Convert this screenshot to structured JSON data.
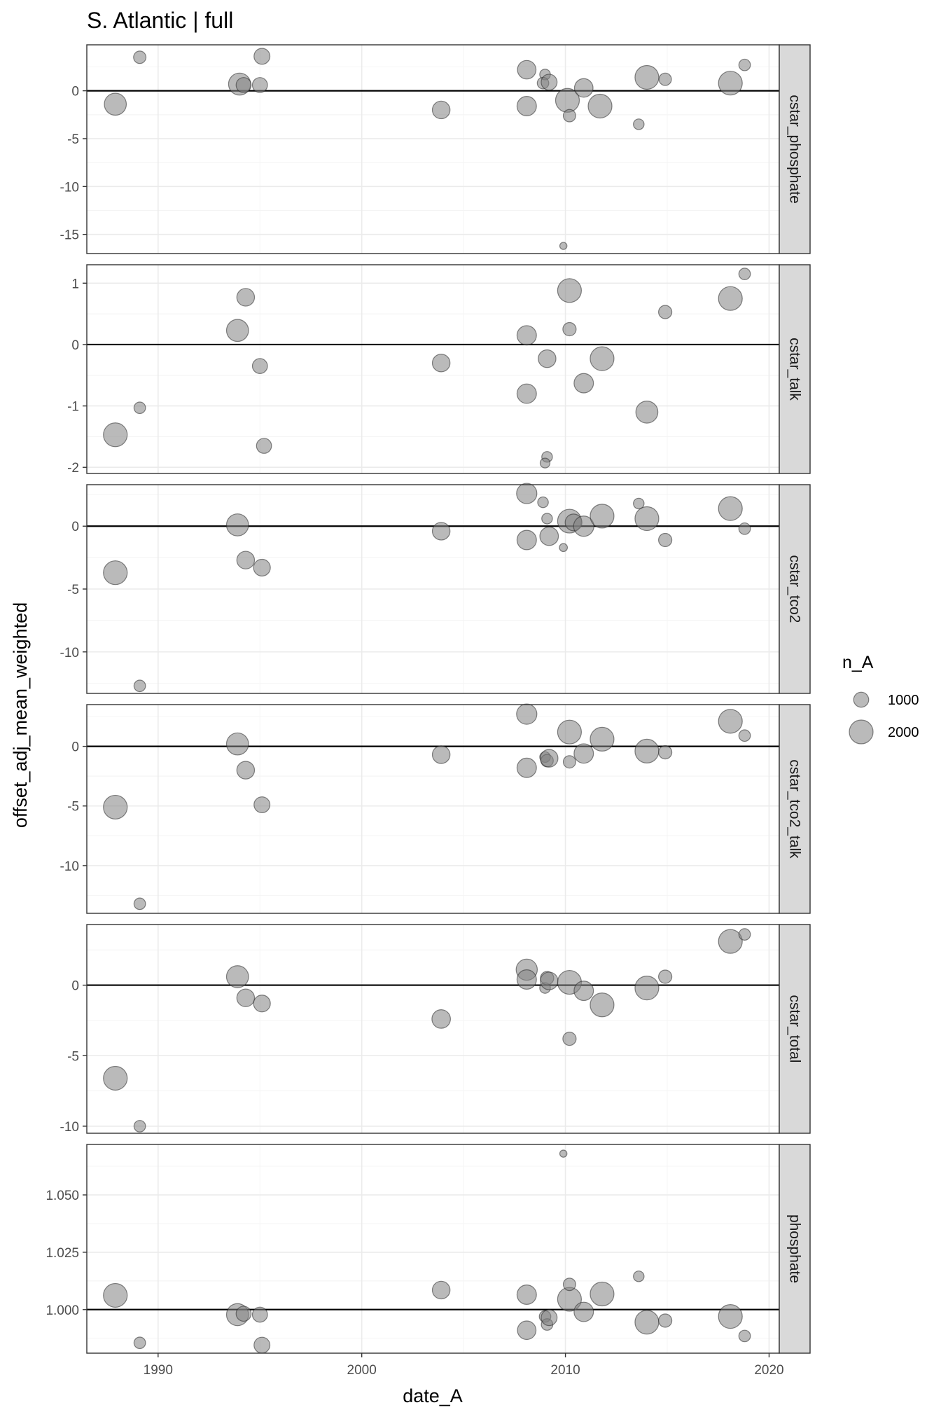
{
  "chart_data": {
    "type": "scatter",
    "title": "S. Atlantic | full",
    "xlabel": "date_A",
    "ylabel": "offset_adj_mean_weighted",
    "xlim": [
      1986.5,
      2020.5
    ],
    "x_ticks": [
      1990,
      2000,
      2010,
      2020
    ],
    "x_tick_labels": [
      "1990",
      "2000",
      "2010",
      "2020"
    ],
    "size_legend": {
      "title": "n_A",
      "entries": [
        {
          "label": "1000",
          "value": 1000
        },
        {
          "label": "2000",
          "value": 2000
        }
      ]
    },
    "reference_line_y": [
      0,
      0,
      0,
      0,
      0,
      1
    ],
    "panels": [
      {
        "label": "cstar_phosphate",
        "ylim": [
          -17,
          4.8
        ],
        "y_ticks": [
          0,
          -5,
          -10,
          -15
        ],
        "y_tick_labels": [
          "0",
          "-5",
          "-10",
          "-15"
        ],
        "points": [
          {
            "x": 1987.9,
            "y": -1.4,
            "n": 1800
          },
          {
            "x": 1989.1,
            "y": 3.5,
            "n": 700
          },
          {
            "x": 1994.0,
            "y": 0.7,
            "n": 1800
          },
          {
            "x": 1994.2,
            "y": 0.6,
            "n": 1000
          },
          {
            "x": 1995.1,
            "y": 3.6,
            "n": 1100
          },
          {
            "x": 1995.0,
            "y": 0.6,
            "n": 1000
          },
          {
            "x": 2003.9,
            "y": -2.0,
            "n": 1300
          },
          {
            "x": 2008.1,
            "y": 2.2,
            "n": 1400
          },
          {
            "x": 2008.1,
            "y": -1.6,
            "n": 1500
          },
          {
            "x": 2009.0,
            "y": 1.7,
            "n": 500
          },
          {
            "x": 2008.9,
            "y": 0.8,
            "n": 600
          },
          {
            "x": 2009.2,
            "y": 0.9,
            "n": 1100
          },
          {
            "x": 2010.1,
            "y": -1.0,
            "n": 2000
          },
          {
            "x": 2010.2,
            "y": -2.6,
            "n": 700
          },
          {
            "x": 2010.9,
            "y": 0.3,
            "n": 1400
          },
          {
            "x": 2011.7,
            "y": -1.6,
            "n": 2000
          },
          {
            "x": 2009.9,
            "y": -16.2,
            "n": 100
          },
          {
            "x": 2013.6,
            "y": -3.5,
            "n": 500
          },
          {
            "x": 2014.0,
            "y": 1.4,
            "n": 2000
          },
          {
            "x": 2014.9,
            "y": 1.2,
            "n": 700
          },
          {
            "x": 2018.1,
            "y": 0.8,
            "n": 2000
          },
          {
            "x": 2018.8,
            "y": 2.7,
            "n": 600
          }
        ]
      },
      {
        "label": "cstar_talk",
        "ylim": [
          -2.1,
          1.3
        ],
        "y_ticks": [
          1,
          0,
          -1,
          -2
        ],
        "y_tick_labels": [
          "1",
          "0",
          "-1",
          "-2"
        ],
        "points": [
          {
            "x": 1987.9,
            "y": -1.47,
            "n": 2000
          },
          {
            "x": 1989.1,
            "y": -1.03,
            "n": 600
          },
          {
            "x": 1993.9,
            "y": 0.23,
            "n": 1800
          },
          {
            "x": 1994.3,
            "y": 0.77,
            "n": 1300
          },
          {
            "x": 1995.0,
            "y": -0.35,
            "n": 1000
          },
          {
            "x": 1995.2,
            "y": -1.65,
            "n": 1000
          },
          {
            "x": 2003.9,
            "y": -0.3,
            "n": 1300
          },
          {
            "x": 2008.1,
            "y": 0.15,
            "n": 1500
          },
          {
            "x": 2008.1,
            "y": -0.8,
            "n": 1500
          },
          {
            "x": 2009.1,
            "y": -0.23,
            "n": 1300
          },
          {
            "x": 2009.1,
            "y": -1.83,
            "n": 500
          },
          {
            "x": 2009.0,
            "y": -1.93,
            "n": 400
          },
          {
            "x": 2010.2,
            "y": 0.88,
            "n": 2000
          },
          {
            "x": 2010.2,
            "y": 0.25,
            "n": 800
          },
          {
            "x": 2010.9,
            "y": -0.63,
            "n": 1500
          },
          {
            "x": 2011.8,
            "y": -0.23,
            "n": 2000
          },
          {
            "x": 2014.0,
            "y": -1.1,
            "n": 1800
          },
          {
            "x": 2014.9,
            "y": 0.53,
            "n": 800
          },
          {
            "x": 2018.1,
            "y": 0.75,
            "n": 2000
          },
          {
            "x": 2018.8,
            "y": 1.15,
            "n": 600
          }
        ]
      },
      {
        "label": "cstar_tco2",
        "ylim": [
          -13.3,
          3.3
        ],
        "y_ticks": [
          0,
          -5,
          -10
        ],
        "y_tick_labels": [
          "0",
          "-5",
          "-10"
        ],
        "points": [
          {
            "x": 1987.9,
            "y": -3.7,
            "n": 2000
          },
          {
            "x": 1989.1,
            "y": -12.7,
            "n": 600
          },
          {
            "x": 1993.9,
            "y": 0.1,
            "n": 1800
          },
          {
            "x": 1994.3,
            "y": -2.7,
            "n": 1300
          },
          {
            "x": 1995.1,
            "y": -3.3,
            "n": 1200
          },
          {
            "x": 2003.9,
            "y": -0.4,
            "n": 1300
          },
          {
            "x": 2008.1,
            "y": 2.6,
            "n": 1600
          },
          {
            "x": 2008.1,
            "y": -1.1,
            "n": 1500
          },
          {
            "x": 2008.9,
            "y": 1.9,
            "n": 500
          },
          {
            "x": 2009.1,
            "y": 0.6,
            "n": 500
          },
          {
            "x": 2009.2,
            "y": -0.8,
            "n": 1400
          },
          {
            "x": 2009.9,
            "y": -1.7,
            "n": 200
          },
          {
            "x": 2010.2,
            "y": 0.4,
            "n": 2000
          },
          {
            "x": 2010.4,
            "y": 0.3,
            "n": 1200
          },
          {
            "x": 2010.9,
            "y": 0.0,
            "n": 1600
          },
          {
            "x": 2011.8,
            "y": 0.8,
            "n": 2000
          },
          {
            "x": 2013.6,
            "y": 1.8,
            "n": 500
          },
          {
            "x": 2014.0,
            "y": 0.6,
            "n": 2000
          },
          {
            "x": 2014.9,
            "y": -1.1,
            "n": 800
          },
          {
            "x": 2018.1,
            "y": 1.4,
            "n": 2000
          },
          {
            "x": 2018.8,
            "y": -0.2,
            "n": 600
          }
        ]
      },
      {
        "label": "cstar_tco2_talk",
        "ylim": [
          -14.0,
          3.5
        ],
        "y_ticks": [
          0,
          -5,
          -10
        ],
        "y_tick_labels": [
          "0",
          "-5",
          "-10"
        ],
        "points": [
          {
            "x": 1987.9,
            "y": -5.1,
            "n": 2000
          },
          {
            "x": 1989.1,
            "y": -13.2,
            "n": 600
          },
          {
            "x": 1993.9,
            "y": 0.2,
            "n": 1800
          },
          {
            "x": 1994.3,
            "y": -2.0,
            "n": 1300
          },
          {
            "x": 1995.1,
            "y": -4.9,
            "n": 1100
          },
          {
            "x": 2003.9,
            "y": -0.7,
            "n": 1300
          },
          {
            "x": 2008.1,
            "y": 2.7,
            "n": 1600
          },
          {
            "x": 2008.1,
            "y": -1.8,
            "n": 1500
          },
          {
            "x": 2009.0,
            "y": -0.9,
            "n": 500
          },
          {
            "x": 2009.1,
            "y": -1.2,
            "n": 700
          },
          {
            "x": 2009.2,
            "y": -1.0,
            "n": 1300
          },
          {
            "x": 2010.2,
            "y": 1.2,
            "n": 2000
          },
          {
            "x": 2010.2,
            "y": -1.3,
            "n": 700
          },
          {
            "x": 2010.9,
            "y": -0.6,
            "n": 1500
          },
          {
            "x": 2011.8,
            "y": 0.6,
            "n": 2000
          },
          {
            "x": 2014.0,
            "y": -0.4,
            "n": 2000
          },
          {
            "x": 2014.9,
            "y": -0.5,
            "n": 800
          },
          {
            "x": 2018.1,
            "y": 2.1,
            "n": 2000
          },
          {
            "x": 2018.8,
            "y": 0.9,
            "n": 600
          }
        ]
      },
      {
        "label": "cstar_total",
        "ylim": [
          -10.5,
          4.3
        ],
        "y_ticks": [
          0,
          -5,
          -10
        ],
        "y_tick_labels": [
          "0",
          "-5",
          "-10"
        ],
        "points": [
          {
            "x": 1987.9,
            "y": -6.6,
            "n": 2000
          },
          {
            "x": 1989.1,
            "y": -10.0,
            "n": 600
          },
          {
            "x": 1993.9,
            "y": 0.6,
            "n": 1800
          },
          {
            "x": 1994.3,
            "y": -0.9,
            "n": 1300
          },
          {
            "x": 1995.1,
            "y": -1.3,
            "n": 1200
          },
          {
            "x": 2003.9,
            "y": -2.4,
            "n": 1400
          },
          {
            "x": 2008.1,
            "y": 1.1,
            "n": 1700
          },
          {
            "x": 2008.1,
            "y": 0.4,
            "n": 1500
          },
          {
            "x": 2009.0,
            "y": -0.2,
            "n": 500
          },
          {
            "x": 2009.1,
            "y": 0.5,
            "n": 800
          },
          {
            "x": 2009.2,
            "y": 0.3,
            "n": 1300
          },
          {
            "x": 2010.2,
            "y": 0.2,
            "n": 2000
          },
          {
            "x": 2010.2,
            "y": -3.8,
            "n": 800
          },
          {
            "x": 2010.9,
            "y": -0.4,
            "n": 1500
          },
          {
            "x": 2011.8,
            "y": -1.4,
            "n": 2000
          },
          {
            "x": 2014.0,
            "y": -0.2,
            "n": 2000
          },
          {
            "x": 2014.9,
            "y": 0.6,
            "n": 800
          },
          {
            "x": 2018.1,
            "y": 3.1,
            "n": 2000
          },
          {
            "x": 2018.8,
            "y": 3.6,
            "n": 600
          }
        ]
      },
      {
        "label": "phosphate",
        "ylim": [
          0.981,
          1.072
        ],
        "y_ticks": [
          1.05,
          1.025,
          1.0
        ],
        "y_tick_labels": [
          "1.050",
          "1.025",
          "1.000"
        ],
        "points": [
          {
            "x": 1987.9,
            "y": 1.0062,
            "n": 2000
          },
          {
            "x": 1989.1,
            "y": 0.9855,
            "n": 600
          },
          {
            "x": 1993.9,
            "y": 0.9978,
            "n": 1800
          },
          {
            "x": 1994.2,
            "y": 0.9982,
            "n": 1000
          },
          {
            "x": 1995.0,
            "y": 0.9978,
            "n": 1000
          },
          {
            "x": 1995.1,
            "y": 0.9845,
            "n": 1100
          },
          {
            "x": 2003.9,
            "y": 1.0085,
            "n": 1300
          },
          {
            "x": 2008.1,
            "y": 1.0065,
            "n": 1500
          },
          {
            "x": 2008.1,
            "y": 0.991,
            "n": 1400
          },
          {
            "x": 2009.0,
            "y": 0.997,
            "n": 600
          },
          {
            "x": 2009.1,
            "y": 0.9935,
            "n": 600
          },
          {
            "x": 2009.2,
            "y": 0.9965,
            "n": 1100
          },
          {
            "x": 2009.9,
            "y": 1.068,
            "n": 100
          },
          {
            "x": 2010.2,
            "y": 1.0045,
            "n": 2000
          },
          {
            "x": 2010.2,
            "y": 1.011,
            "n": 700
          },
          {
            "x": 2010.9,
            "y": 0.999,
            "n": 1500
          },
          {
            "x": 2011.8,
            "y": 1.0068,
            "n": 2000
          },
          {
            "x": 2013.6,
            "y": 1.0145,
            "n": 500
          },
          {
            "x": 2014.0,
            "y": 0.9945,
            "n": 2000
          },
          {
            "x": 2014.9,
            "y": 0.9952,
            "n": 800
          },
          {
            "x": 2018.1,
            "y": 0.997,
            "n": 2000
          },
          {
            "x": 2018.8,
            "y": 0.9885,
            "n": 600
          }
        ]
      }
    ]
  }
}
